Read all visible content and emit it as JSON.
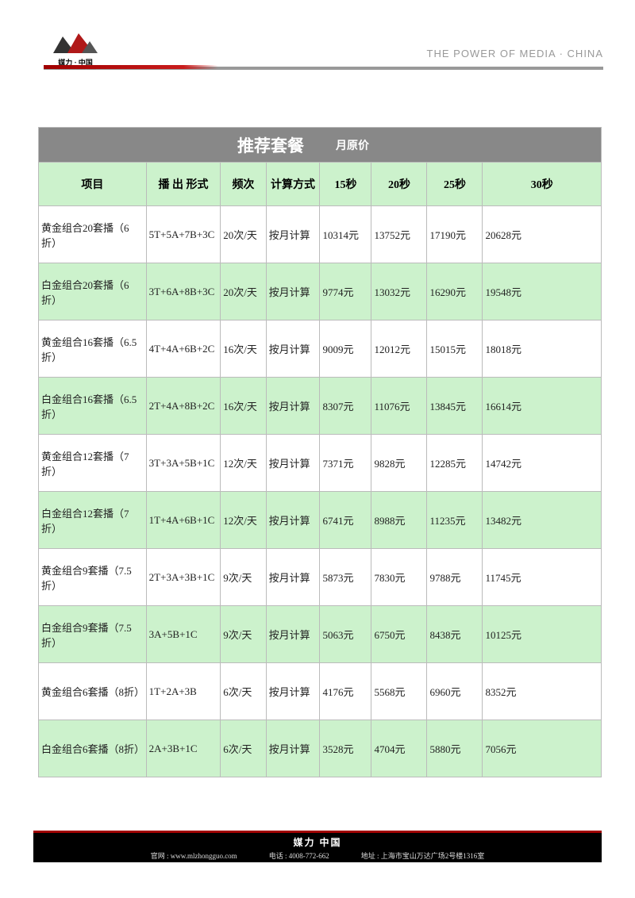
{
  "header": {
    "logo_brand": "媒力 · 中国",
    "logo_sub": "THE POWER OF MEDIA · CHINA",
    "tagline": "THE POWER OF MEDIA · CHINA"
  },
  "table": {
    "title_main": "推荐套餐",
    "title_sub": "月原价",
    "columns": [
      "项目",
      "播 出 形式",
      "频次",
      "计算方式",
      "15秒",
      "20秒",
      "25秒",
      "30秒"
    ],
    "rows": [
      {
        "c": [
          "黄金组合20套播（6折）",
          "5T+5A+7B+3C",
          "20次/天",
          "按月计算",
          "10314元",
          "13752元",
          "17190元",
          "20628元"
        ],
        "bg": "white"
      },
      {
        "c": [
          "白金组合20套播（6折）",
          "3T+6A+8B+3C",
          "20次/天",
          "按月计算",
          "9774元",
          "13032元",
          "16290元",
          "19548元"
        ],
        "bg": "green"
      },
      {
        "c": [
          "黄金组合16套播（6.5折）",
          "4T+4A+6B+2C",
          "16次/天",
          "按月计算",
          "9009元",
          "12012元",
          "15015元",
          "18018元"
        ],
        "bg": "white"
      },
      {
        "c": [
          "白金组合16套播（6.5折）",
          "2T+4A+8B+2C",
          "16次/天",
          "按月计算",
          "8307元",
          "11076元",
          "13845元",
          "16614元"
        ],
        "bg": "green"
      },
      {
        "c": [
          "黄金组合12套播（7折）",
          "3T+3A+5B+1C",
          "12次/天",
          "按月计算",
          "7371元",
          "9828元",
          "12285元",
          "14742元"
        ],
        "bg": "white"
      },
      {
        "c": [
          "白金组合12套播（7折）",
          "1T+4A+6B+1C",
          "12次/天",
          "按月计算",
          "6741元",
          "8988元",
          "11235元",
          "13482元"
        ],
        "bg": "green"
      },
      {
        "c": [
          "黄金组合9套播（7.5折）",
          "2T+3A+3B+1C",
          "9次/天",
          "按月计算",
          "5873元",
          "7830元",
          "9788元",
          "11745元"
        ],
        "bg": "white"
      },
      {
        "c": [
          "白金组合9套播（7.5折）",
          "3A+5B+1C",
          "9次/天",
          "按月计算",
          "5063元",
          "6750元",
          "8438元",
          "10125元"
        ],
        "bg": "green"
      },
      {
        "c": [
          "黄金组合6套播（8折）",
          "1T+2A+3B",
          "6次/天",
          "按月计算",
          "4176元",
          "5568元",
          "6960元",
          "8352元"
        ],
        "bg": "white"
      },
      {
        "c": [
          "白金组合6套播（8折）",
          "2A+3B+1C",
          "6次/天",
          "按月计算",
          "3528元",
          "4704元",
          "5880元",
          "7056元"
        ],
        "bg": "green"
      }
    ]
  },
  "footer": {
    "brand": "媒力 中国",
    "website_label": "官网 :",
    "website": "www.mlzhongguo.com",
    "phone_label": "电话 :",
    "phone": "4008-772-662",
    "address_label": "地址 :",
    "address": "上海市宝山万达广场2号楼1316室"
  },
  "styling": {
    "header_green": "#ccf2cc",
    "header_grey": "#888888",
    "border_color": "#bbbbbb",
    "accent_red": "#a00000",
    "footer_bg": "#000000"
  }
}
